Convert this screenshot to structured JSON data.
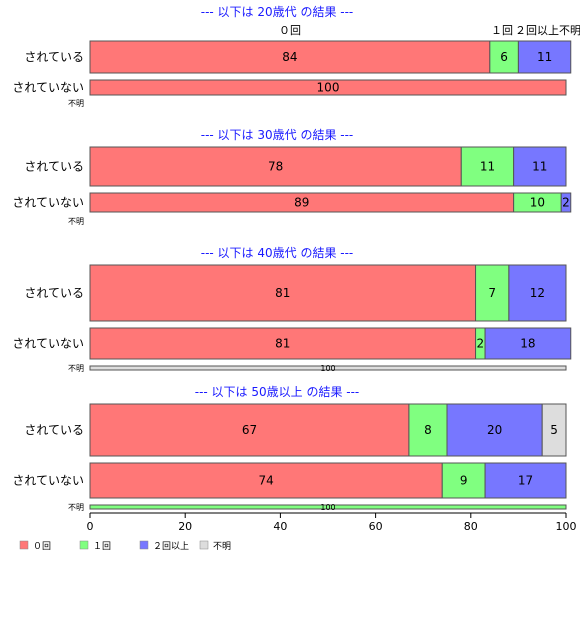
{
  "chart_data": {
    "type": "bar",
    "orientation": "horizontal",
    "stacked": true,
    "xlim": [
      0,
      100
    ],
    "x_ticks": [
      "0",
      "20",
      "40",
      "60",
      "80",
      "100"
    ],
    "category_header": [
      "０回",
      "１回",
      "２回以上",
      "不明"
    ],
    "legend": {
      "placement": "bottom-left",
      "entries": [
        {
          "name": "０回",
          "color": "#ff7777"
        },
        {
          "name": "１回",
          "color": "#80ff80"
        },
        {
          "name": "２回以上",
          "color": "#7777ff"
        },
        {
          "name": "不明",
          "color": "#dddddd"
        }
      ]
    },
    "groups": [
      {
        "title": "--- 以下は 20歳代 の結果 ---",
        "rows": [
          {
            "label": "されている",
            "values": [
              84,
              6,
              11,
              0
            ]
          },
          {
            "label": "されていない",
            "values": [
              100,
              0,
              0,
              0
            ]
          },
          {
            "label": "不明",
            "values": []
          }
        ]
      },
      {
        "title": "--- 以下は 30歳代 の結果 ---",
        "rows": [
          {
            "label": "されている",
            "values": [
              78,
              11,
              11,
              0
            ]
          },
          {
            "label": "されていない",
            "values": [
              89,
              10,
              2,
              0
            ]
          },
          {
            "label": "不明",
            "values": []
          }
        ]
      },
      {
        "title": "--- 以下は 40歳代 の結果 ---",
        "rows": [
          {
            "label": "されている",
            "values": [
              81,
              7,
              12,
              0
            ]
          },
          {
            "label": "されていない",
            "values": [
              81,
              2,
              18,
              0
            ]
          },
          {
            "label": "不明",
            "values": [
              0,
              0,
              0,
              100
            ]
          }
        ]
      },
      {
        "title": "--- 以下は 50歳以上 の結果 ---",
        "rows": [
          {
            "label": "されている",
            "values": [
              67,
              8,
              20,
              5
            ]
          },
          {
            "label": "されていない",
            "values": [
              74,
              9,
              17,
              0
            ]
          },
          {
            "label": "不明",
            "values": [
              0,
              100,
              0,
              0
            ]
          }
        ]
      }
    ]
  }
}
